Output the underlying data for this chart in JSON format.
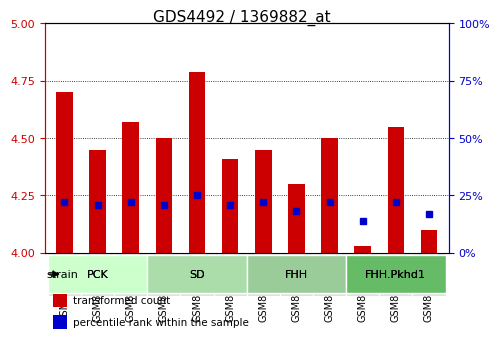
{
  "title": "GDS4492 / 1369882_at",
  "samples": [
    "GSM818876",
    "GSM818877",
    "GSM818878",
    "GSM818879",
    "GSM818880",
    "GSM818881",
    "GSM818882",
    "GSM818883",
    "GSM818884",
    "GSM818885",
    "GSM818886",
    "GSM818887"
  ],
  "transformed_count": [
    4.7,
    4.45,
    4.57,
    4.5,
    4.79,
    4.41,
    4.45,
    4.3,
    4.5,
    4.03,
    4.55,
    4.1
  ],
  "percentile_rank": [
    22,
    21,
    22,
    21,
    25,
    21,
    22,
    18,
    22,
    14,
    22,
    17
  ],
  "ylim_left": [
    4.0,
    5.0
  ],
  "ylim_right": [
    0,
    100
  ],
  "yticks_left": [
    4.0,
    4.25,
    4.5,
    4.75,
    5.0
  ],
  "yticks_right": [
    0,
    25,
    50,
    75,
    100
  ],
  "bar_color": "#cc0000",
  "dot_color": "#0000cc",
  "bar_bottom": 4.0,
  "groups": [
    {
      "label": "PCK",
      "start": 0,
      "end": 3,
      "color": "#ccffcc"
    },
    {
      "label": "SD",
      "start": 3,
      "end": 6,
      "color": "#66dd66"
    },
    {
      "label": "FHH",
      "start": 6,
      "end": 9,
      "color": "#66cc66"
    },
    {
      "label": "FHH.Pkhd1",
      "start": 9,
      "end": 12,
      "color": "#33bb33"
    }
  ],
  "legend_items": [
    {
      "label": "transformed count",
      "color": "#cc0000"
    },
    {
      "label": "percentile rank within the sample",
      "color": "#0000cc"
    }
  ],
  "strain_label": "strain",
  "title_color": "#000000",
  "left_axis_color": "#cc0000",
  "right_axis_color": "#0000cc"
}
